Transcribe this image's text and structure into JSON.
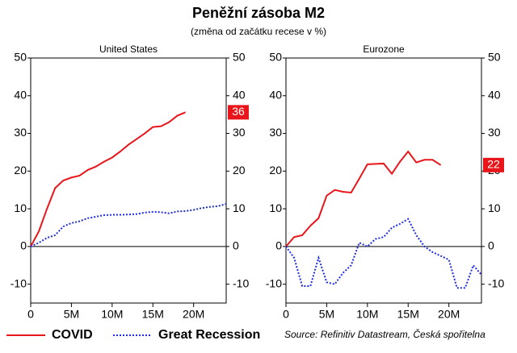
{
  "title": "Peněžní zásoba M2",
  "subtitle": "(změna od začátku recese v %)",
  "source": "Source: Refinitiv Datastream, Česká spořitelna",
  "chart_data": [
    {
      "type": "line",
      "title": "United States",
      "x": [
        0,
        1,
        2,
        3,
        4,
        5,
        6,
        7,
        8,
        9,
        10,
        11,
        12,
        13,
        14,
        15,
        16,
        17,
        18,
        19,
        20,
        21,
        22,
        23,
        24
      ],
      "series": [
        {
          "name": "COVID",
          "color": "#e8161b",
          "values": [
            0,
            4,
            10,
            15.5,
            17.5,
            18.3,
            18.8,
            20.3,
            21.2,
            22.5,
            23.6,
            25.2,
            27,
            28.5,
            30,
            31.7,
            31.9,
            33,
            34.7,
            35.6,
            null,
            null,
            null,
            null,
            null
          ],
          "value_labels": [
            null,
            null,
            null,
            null,
            null,
            null,
            null,
            null,
            null,
            null,
            null,
            null,
            null,
            null,
            null,
            null,
            null,
            null,
            null,
            "36",
            null,
            null,
            null,
            null,
            null
          ]
        },
        {
          "name": "Great Recession",
          "color": "#1f2de0",
          "values": [
            0,
            1,
            2.3,
            3,
            5.3,
            6.2,
            6.7,
            7.5,
            7.9,
            8.3,
            8.4,
            8.4,
            8.5,
            8.6,
            9,
            9.2,
            9.1,
            8.8,
            9.3,
            9.4,
            9.7,
            10.2,
            10.5,
            10.7,
            11.3
          ]
        }
      ],
      "xlim": [
        0,
        24
      ],
      "xticks": [
        0,
        {
          "value": 5,
          "label": "5M"
        },
        {
          "value": 10,
          "label": "10M"
        },
        {
          "value": 15,
          "label": "15M"
        },
        {
          "value": 20,
          "label": "20M"
        }
      ],
      "ylim": [
        -15,
        50
      ],
      "yticks": [
        -10,
        0,
        10,
        20,
        30,
        40,
        50
      ],
      "y2lim": [
        -15,
        50
      ],
      "y2ticks": [
        -10,
        0,
        10,
        20,
        30,
        40,
        50
      ]
    },
    {
      "type": "line",
      "title": "Eurozone",
      "x": [
        0,
        1,
        2,
        3,
        4,
        5,
        6,
        7,
        8,
        9,
        10,
        11,
        12,
        13,
        14,
        15,
        16,
        17,
        18,
        19,
        20,
        21,
        22,
        23,
        24
      ],
      "series": [
        {
          "name": "COVID",
          "color": "#e8161b",
          "values": [
            0,
            2.5,
            3,
            5.5,
            7.5,
            13.5,
            15,
            14.5,
            14.3,
            18,
            21.8,
            21.9,
            22,
            19.3,
            22.5,
            25.2,
            22.3,
            23,
            23,
            21.6,
            null,
            null,
            null,
            null,
            null
          ],
          "value_labels": [
            null,
            null,
            null,
            null,
            null,
            null,
            null,
            null,
            null,
            null,
            null,
            null,
            null,
            null,
            null,
            null,
            null,
            null,
            null,
            "22",
            null,
            null,
            null,
            null,
            null
          ]
        },
        {
          "name": "Great Recession",
          "color": "#1f2de0",
          "values": [
            0,
            -3,
            -10.5,
            -10.5,
            -3,
            -9.5,
            -10,
            -7,
            -5,
            1,
            0,
            2,
            2.5,
            5,
            6,
            7.3,
            3,
            0,
            -1.5,
            -2.5,
            -3.5,
            -11,
            -11,
            -5,
            -7.5
          ]
        }
      ],
      "xlim": [
        0,
        24
      ],
      "xticks": [
        0,
        {
          "value": 5,
          "label": "5M"
        },
        {
          "value": 10,
          "label": "10M"
        },
        {
          "value": 15,
          "label": "15M"
        },
        {
          "value": 20,
          "label": "20M"
        }
      ],
      "ylim": [
        -15,
        50
      ],
      "yticks": [
        -10,
        0,
        10,
        20,
        30,
        40,
        50
      ],
      "y2lim": [
        -15,
        50
      ],
      "y2ticks": [
        -10,
        0,
        10,
        20,
        30,
        40,
        50
      ]
    }
  ]
}
